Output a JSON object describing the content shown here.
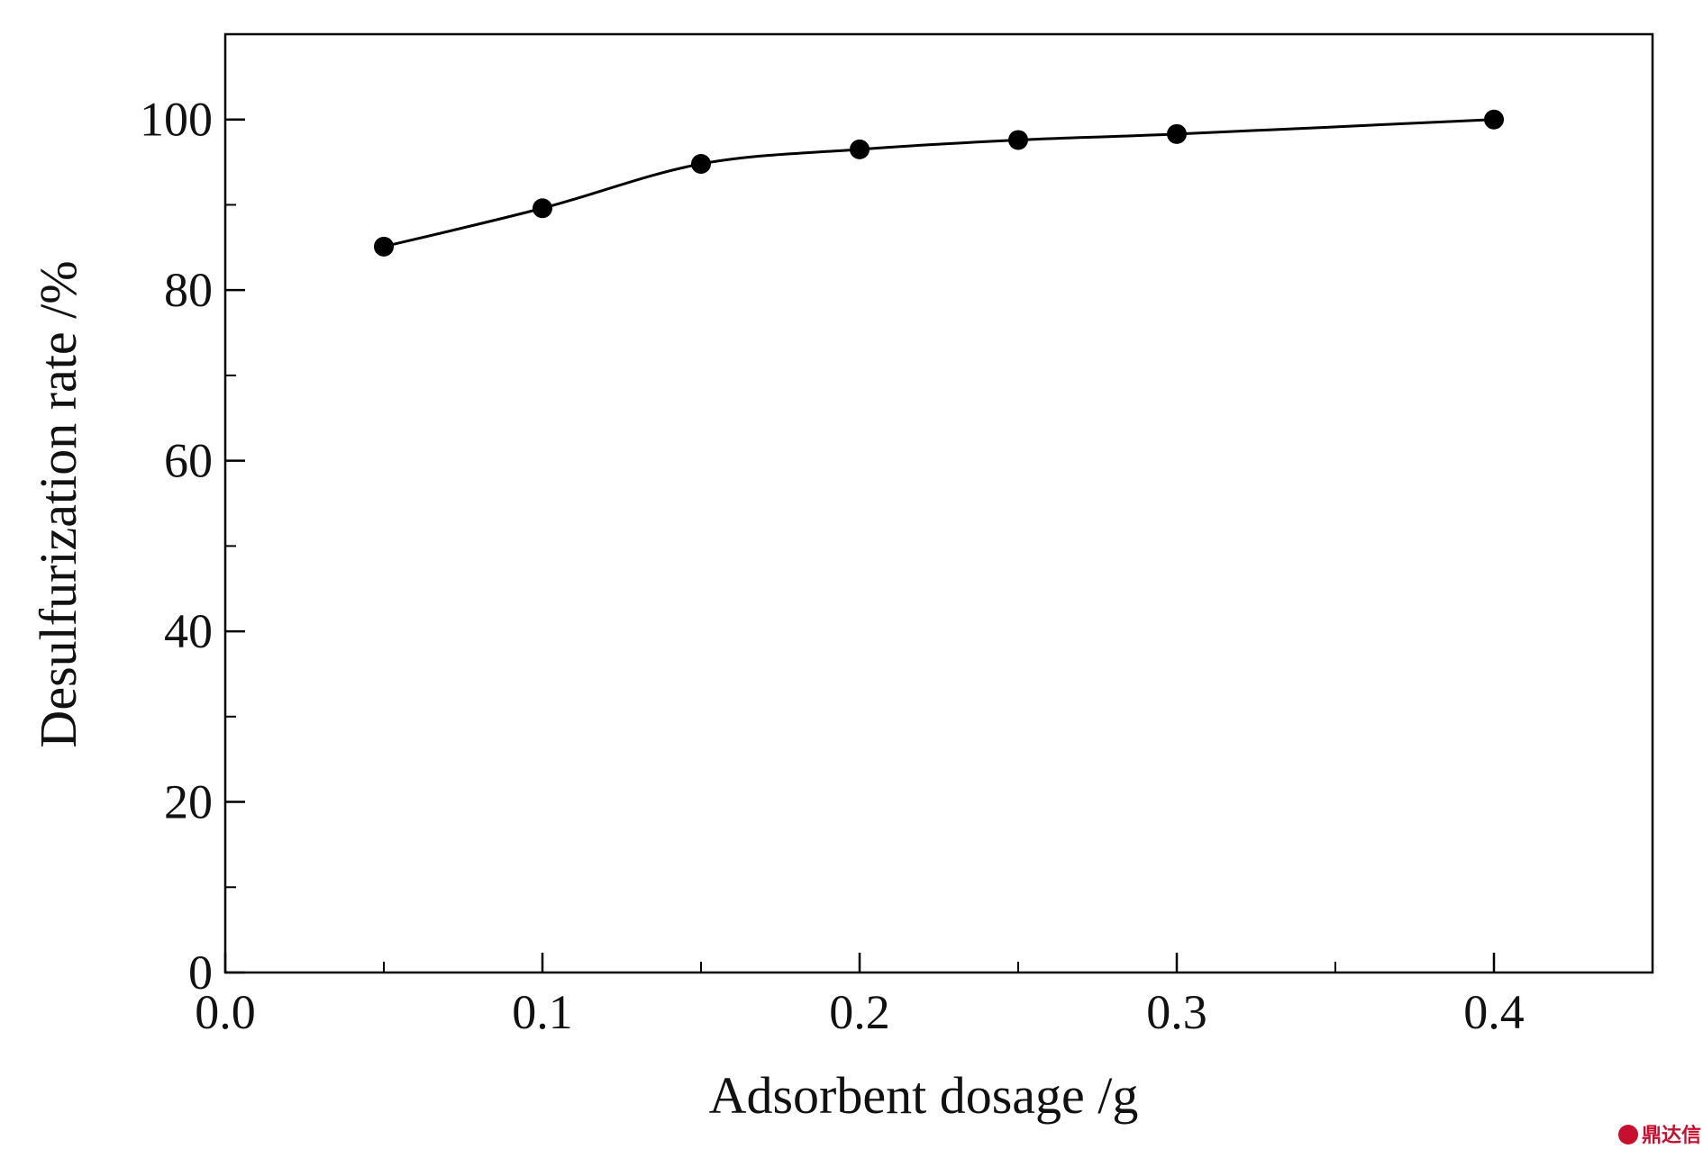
{
  "chart_data": {
    "type": "line",
    "title": "",
    "xlabel": "Adsorbent dosage /g",
    "ylabel": "Desulfurization rate /%",
    "xlim": [
      0,
      0.45
    ],
    "ylim": [
      0,
      110
    ],
    "x_ticks": [
      0.0,
      0.1,
      0.2,
      0.3,
      0.4
    ],
    "x_tick_labels": [
      "0.0",
      "0.1",
      "0.2",
      "0.3",
      "0.4"
    ],
    "x_minor_ticks": [
      0.05,
      0.15,
      0.25,
      0.35
    ],
    "y_ticks": [
      0,
      20,
      40,
      60,
      80,
      100
    ],
    "y_tick_labels": [
      "0",
      "20",
      "40",
      "60",
      "80",
      "100"
    ],
    "y_minor_ticks": [
      10,
      30,
      50,
      70,
      90
    ],
    "grid": false,
    "series": [
      {
        "x": [
          0.05,
          0.1,
          0.15,
          0.2,
          0.25,
          0.3,
          0.4
        ],
        "y": [
          85.1,
          89.6,
          94.8,
          96.5,
          97.6,
          98.3,
          100.0
        ],
        "color": "#000000",
        "marker": "filled-circle"
      }
    ]
  },
  "watermark": {
    "text": "鼎达信",
    "color": "#c8102e"
  }
}
